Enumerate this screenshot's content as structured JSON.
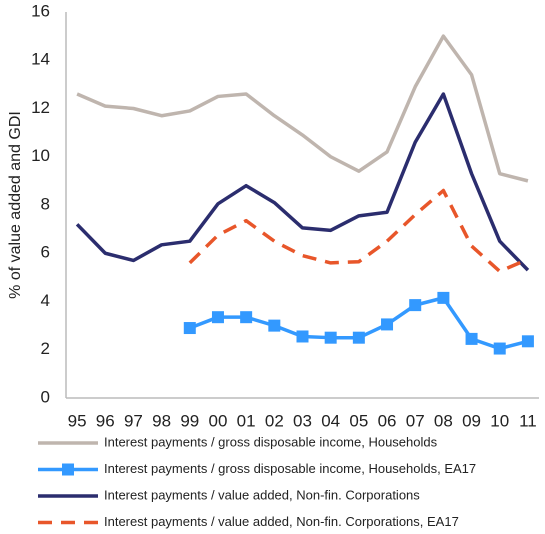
{
  "chart_data": {
    "type": "line",
    "ylabel": "% of value added and GDI",
    "categories": [
      "95",
      "96",
      "97",
      "98",
      "99",
      "00",
      "01",
      "02",
      "03",
      "04",
      "05",
      "06",
      "07",
      "08",
      "09",
      "10",
      "11"
    ],
    "ylim": [
      0,
      16
    ],
    "yticks": [
      0,
      2,
      4,
      6,
      8,
      10,
      12,
      14,
      16
    ],
    "grid": false,
    "legend": "bottom",
    "series": [
      {
        "name": "Interest payments / gross disposable income, Households",
        "color": "#bfb5ae",
        "dash": false,
        "marker": "none",
        "values": [
          12.6,
          12.1,
          12.0,
          11.7,
          11.9,
          12.5,
          12.6,
          11.7,
          10.9,
          10.0,
          9.4,
          10.2,
          12.9,
          15.0,
          13.4,
          9.3,
          9.0
        ]
      },
      {
        "name": "Interest payments / gross disposable income, Households, EA17",
        "color": "#3399ff",
        "dash": false,
        "marker": "square",
        "values": [
          null,
          null,
          null,
          null,
          2.9,
          3.35,
          3.35,
          3.0,
          2.55,
          2.5,
          2.5,
          3.05,
          3.85,
          4.15,
          2.45,
          2.05,
          2.35
        ]
      },
      {
        "name": "Interest payments / value added, Non-fin. Corporations",
        "color": "#2b2d6e",
        "dash": false,
        "marker": "none",
        "values": [
          7.2,
          6.0,
          5.7,
          6.35,
          6.5,
          8.05,
          8.8,
          8.1,
          7.05,
          6.95,
          7.55,
          7.7,
          10.6,
          12.6,
          9.3,
          6.5,
          5.3
        ]
      },
      {
        "name": "Interest payments / value added, Non-fin. Corporations, EA17",
        "color": "#e8562a",
        "dash": true,
        "marker": "none",
        "values": [
          null,
          null,
          null,
          null,
          5.6,
          6.75,
          7.35,
          6.5,
          5.9,
          5.6,
          5.65,
          6.5,
          7.6,
          8.6,
          6.3,
          5.25,
          5.75
        ]
      }
    ]
  }
}
